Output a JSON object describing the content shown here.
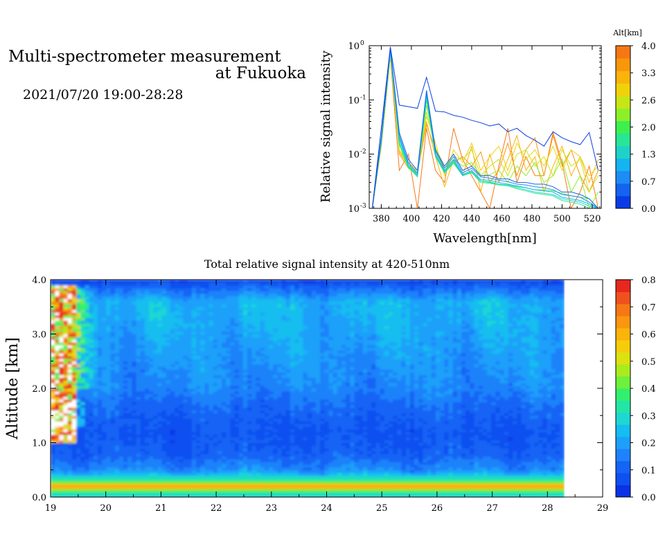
{
  "header": {
    "title_line1": "Multi-spectrometer measurement",
    "title_line2": "at Fukuoka",
    "subtitle": "2021/07/20 19:00-28:28"
  },
  "chart_data": [
    {
      "type": "line",
      "title": "",
      "xlabel": "Wavelength[nm]",
      "ylabel": "Relative signal intensity",
      "xlim": [
        372,
        526
      ],
      "ylim": [
        0.001,
        1
      ],
      "y_scale": "log",
      "x_ticks": [
        380,
        400,
        420,
        440,
        460,
        480,
        500,
        520
      ],
      "y_ticks": [
        {
          "value": 0.001,
          "base": "10",
          "exp": "-3"
        },
        {
          "value": 0.01,
          "base": "10",
          "exp": "-2"
        },
        {
          "value": 0.1,
          "base": "10",
          "exp": "-1"
        },
        {
          "value": 1,
          "base": "10",
          "exp": "0"
        }
      ],
      "colorbar": {
        "label": "Alt[km]",
        "ticks": [
          "0.0",
          "0.7",
          "1.3",
          "2.0",
          "2.6",
          "3.3",
          "4.0"
        ],
        "colors": [
          "#0a3ce6",
          "#1464f0",
          "#1e8cf5",
          "#14b4f0",
          "#1ed2c8",
          "#28e696",
          "#3cf050",
          "#8cf028",
          "#c8e614",
          "#f0d20a",
          "#fab40a",
          "#fa960a",
          "#f57814"
        ]
      },
      "x": [
        374,
        380,
        386,
        392,
        398,
        404,
        410,
        416,
        422,
        428,
        434,
        440,
        446,
        452,
        458,
        464,
        470,
        476,
        482,
        488,
        494,
        500,
        506,
        512,
        518,
        524
      ],
      "series": [
        {
          "color": "#0a3ce6",
          "values": [
            0.001,
            0.03,
            0.95,
            0.08,
            0.075,
            0.07,
            0.26,
            0.062,
            0.06,
            0.052,
            0.048,
            0.042,
            0.038,
            0.033,
            0.036,
            0.026,
            0.03,
            0.022,
            0.018,
            0.014,
            0.026,
            0.02,
            0.017,
            0.015,
            0.025,
            0.005
          ]
        },
        {
          "color": "#1464f0",
          "values": [
            0.001,
            0.02,
            0.9,
            0.025,
            0.008,
            0.005,
            0.15,
            0.012,
            0.006,
            0.01,
            0.005,
            0.006,
            0.004,
            0.004,
            0.0035,
            0.0035,
            0.003,
            0.003,
            0.0028,
            0.0028,
            0.0025,
            0.002,
            0.002,
            0.0018,
            0.0015,
            0.001
          ]
        },
        {
          "color": "#1e8cf5",
          "values": [
            0.001,
            0.02,
            0.88,
            0.022,
            0.007,
            0.0045,
            0.14,
            0.011,
            0.0055,
            0.009,
            0.0045,
            0.0055,
            0.0038,
            0.0036,
            0.0033,
            0.0031,
            0.0028,
            0.0027,
            0.0025,
            0.0024,
            0.0022,
            0.0018,
            0.0017,
            0.0016,
            0.0013,
            0.001
          ]
        },
        {
          "color": "#14b4f0",
          "values": [
            0.001,
            0.018,
            0.85,
            0.02,
            0.0065,
            0.0042,
            0.13,
            0.01,
            0.005,
            0.008,
            0.0042,
            0.005,
            0.0034,
            0.0033,
            0.003,
            0.0028,
            0.0026,
            0.0024,
            0.0022,
            0.0021,
            0.002,
            0.0016,
            0.0015,
            0.0014,
            0.0012,
            0.001
          ]
        },
        {
          "color": "#1ed2c8",
          "values": [
            0.001,
            0.018,
            0.82,
            0.018,
            0.006,
            0.004,
            0.12,
            0.0095,
            0.0048,
            0.0075,
            0.004,
            0.0048,
            0.0032,
            0.003,
            0.0028,
            0.0027,
            0.0024,
            0.0022,
            0.002,
            0.0019,
            0.0018,
            0.0015,
            0.0014,
            0.0013,
            0.0011,
            0.001
          ]
        },
        {
          "color": "#28e696",
          "values": [
            0.001,
            0.017,
            0.8,
            0.016,
            0.0058,
            0.0038,
            0.11,
            0.009,
            0.0046,
            0.007,
            0.0041,
            0.0046,
            0.003,
            0.0029,
            0.0027,
            0.0026,
            0.0023,
            0.0021,
            0.0019,
            0.0018,
            0.0017,
            0.0014,
            0.0013,
            0.0012,
            0.001,
            0.001
          ]
        },
        {
          "color": "#3cf050",
          "values": [
            0.001,
            0.016,
            0.78,
            0.015,
            0.0055,
            0.004,
            0.1,
            0.009,
            0.0045,
            0.0068,
            0.004,
            0.0045,
            0.0032,
            0.0031,
            0.0028,
            0.0027,
            0.0025,
            0.0024,
            0.0022,
            0.0022,
            0.0021,
            0.0019,
            0.0017,
            0.0016,
            0.0015,
            0.001
          ]
        },
        {
          "color": "#8cf028",
          "values": [
            0.001,
            0.016,
            0.75,
            0.015,
            0.006,
            0.0042,
            0.08,
            0.012,
            0.0055,
            0.008,
            0.006,
            0.007,
            0.004,
            0.0042,
            0.005,
            0.003,
            0.006,
            0.004,
            0.007,
            0.003,
            0.004,
            0.008,
            0.002,
            0.004,
            0.001,
            0.002
          ]
        },
        {
          "color": "#c8e614",
          "values": [
            0.001,
            0.015,
            0.72,
            0.012,
            0.006,
            0.0045,
            0.06,
            0.013,
            0.006,
            0.009,
            0.008,
            0.012,
            0.004,
            0.006,
            0.008,
            0.004,
            0.01,
            0.012,
            0.006,
            0.009,
            0.004,
            0.012,
            0.006,
            0.008,
            0.002,
            0.004
          ]
        },
        {
          "color": "#f0d20a",
          "values": [
            0.001,
            0.015,
            0.7,
            0.012,
            0.007,
            0.005,
            0.05,
            0.016,
            0.004,
            0.012,
            0.007,
            0.016,
            0.005,
            0.009,
            0.014,
            0.005,
            0.016,
            0.008,
            0.012,
            0.006,
            0.014,
            0.005,
            0.012,
            0.009,
            0.004,
            0.006
          ]
        },
        {
          "color": "#fab40a",
          "values": [
            0.001,
            0.014,
            0.68,
            0.011,
            0.006,
            0.005,
            0.04,
            0.009,
            0.0025,
            0.008,
            0.004,
            0.014,
            0.002,
            0.01,
            0.003,
            0.008,
            0.022,
            0.005,
            0.009,
            0.002,
            0.006,
            0.014,
            0.004,
            0.009,
            0.003,
            0.008
          ]
        },
        {
          "color": "#fa960a",
          "values": [
            0.001,
            0.014,
            0.66,
            0.01,
            0.0055,
            0.0045,
            0.035,
            0.012,
            0.005,
            0.007,
            0.009,
            0.006,
            0.011,
            0.003,
            0.005,
            0.016,
            0.004,
            0.012,
            0.02,
            0.004,
            0.022,
            0.006,
            0.012,
            0.004,
            0.002,
            0.005
          ]
        },
        {
          "color": "#f57814",
          "values": [
            0.001,
            0.014,
            0.64,
            0.005,
            0.01,
            0.001,
            0.03,
            0.005,
            0.003,
            0.03,
            0.008,
            0.004,
            0.002,
            0.001,
            0.006,
            0.03,
            0.003,
            0.009,
            0.004,
            0.004,
            0.025,
            0.007,
            0.001,
            0.002,
            0.006,
            0.001
          ]
        }
      ]
    },
    {
      "type": "heatmap",
      "title": "Total relative signal intensity at 420-510nm",
      "xlabel": "",
      "ylabel": "Altitude [km]",
      "xlim": [
        19,
        29
      ],
      "ylim": [
        0,
        4
      ],
      "x_ticks": [
        "19",
        "20",
        "21",
        "22",
        "23",
        "24",
        "25",
        "26",
        "27",
        "28",
        "29"
      ],
      "y_ticks": [
        "0.0",
        "1.0",
        "2.0",
        "3.0",
        "4.0"
      ],
      "data_x_end": 28.3,
      "altitude_levels": [
        0.0,
        0.1,
        0.2,
        0.3,
        0.5,
        0.8,
        1.2,
        1.6,
        2.0,
        2.4,
        2.8,
        3.2,
        3.6,
        4.0
      ],
      "altitude_profile": [
        0.25,
        0.35,
        0.7,
        0.35,
        0.17,
        0.1,
        0.08,
        0.11,
        0.16,
        0.18,
        0.2,
        0.22,
        0.23,
        0.05
      ],
      "colorbar": {
        "ticks": [
          "0.0",
          "0.1",
          "0.2",
          "0.3",
          "0.4",
          "0.5",
          "0.6",
          "0.7",
          "0.8"
        ],
        "colors": [
          "#0a32e6",
          "#0f50f0",
          "#1464f5",
          "#1e82fa",
          "#1ea0fa",
          "#14bef0",
          "#1ed7d2",
          "#23e6a5",
          "#32f06e",
          "#6ef03c",
          "#aaeb1e",
          "#dce10f",
          "#f5cd0a",
          "#fab40a",
          "#fa960f",
          "#f57814",
          "#f0501e",
          "#e6281e"
        ]
      }
    }
  ]
}
